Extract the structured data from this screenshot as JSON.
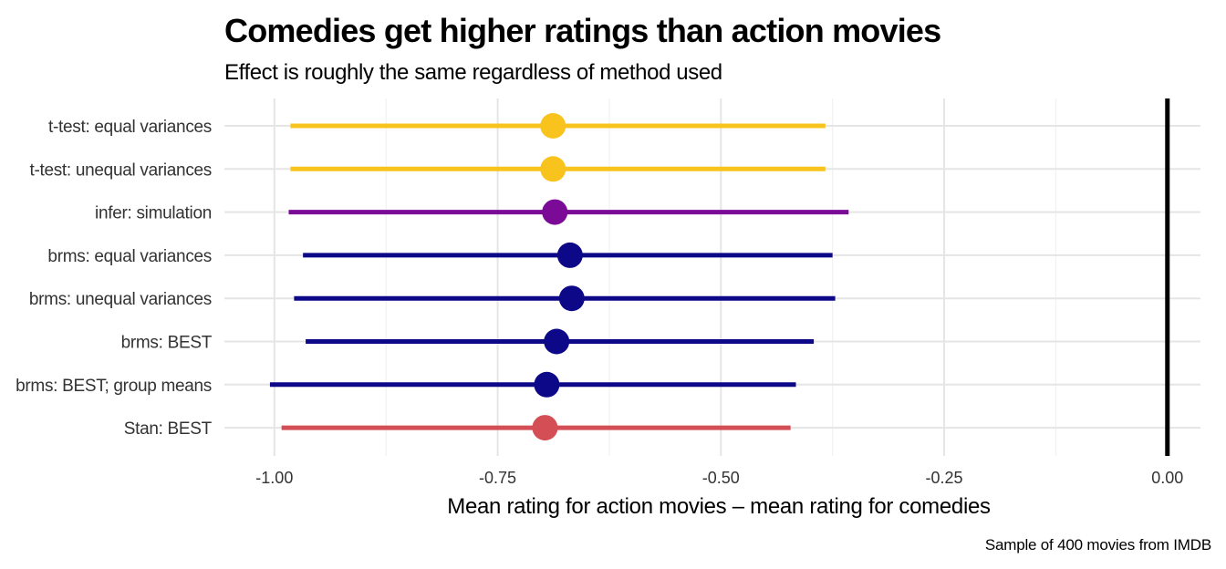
{
  "chart_data": {
    "type": "pointrange",
    "title": "Comedies get higher ratings than action movies",
    "subtitle": "Effect is roughly the same regardless of method used",
    "xlabel": "Mean rating for action movies – mean rating for comedies",
    "ylabel": "",
    "caption": "Sample of 400 movies from IMDB",
    "xlim": [
      -1.056,
      0.037
    ],
    "xticks": [
      -1.0,
      -0.75,
      -0.5,
      -0.25,
      0.0
    ],
    "xtick_labels": [
      "-1.00",
      "-0.75",
      "-0.50",
      "-0.25",
      "0.00"
    ],
    "reference_line": 0.0,
    "grid": true,
    "legend": "none",
    "categories": [
      "t-test: equal variances",
      "t-test: unequal variances",
      "infer: simulation",
      "brms: equal variances",
      "brms: unequal variances",
      "brms: BEST",
      "brms: BEST; group means",
      "Stan: BEST"
    ],
    "estimates": [
      -0.688,
      -0.688,
      -0.686,
      -0.669,
      -0.667,
      -0.684,
      -0.695,
      -0.697
    ],
    "lower": [
      -0.982,
      -0.982,
      -0.984,
      -0.968,
      -0.978,
      -0.965,
      -1.005,
      -0.992
    ],
    "upper": [
      -0.383,
      -0.383,
      -0.357,
      -0.375,
      -0.372,
      -0.396,
      -0.416,
      -0.422
    ],
    "colors": [
      "#F9C31E",
      "#F9C31E",
      "#7B0A96",
      "#0D0887",
      "#0D0887",
      "#0D0887",
      "#0D0887",
      "#D44E56"
    ]
  }
}
